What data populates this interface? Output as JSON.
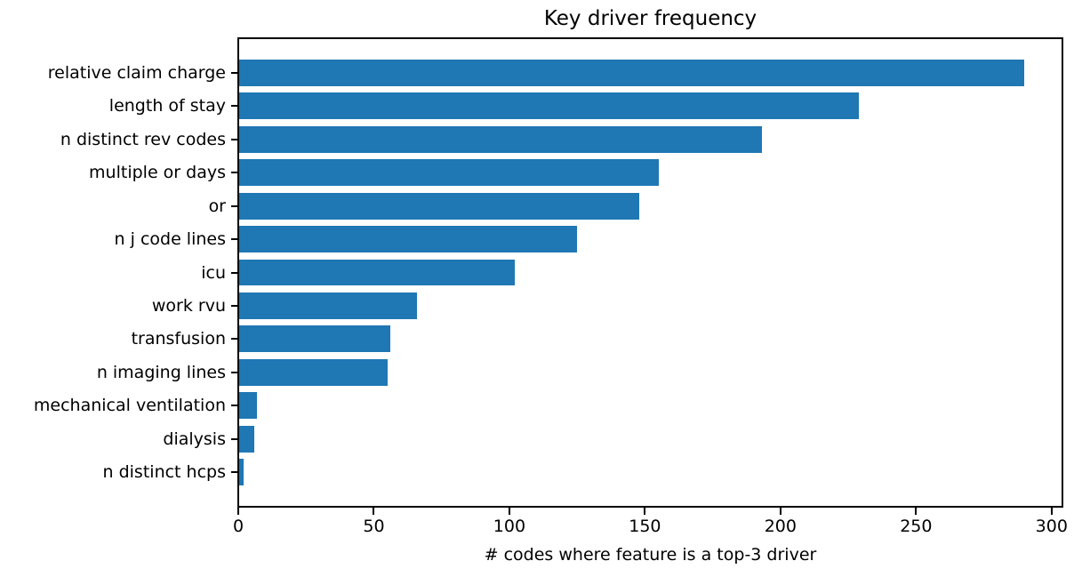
{
  "chart_data": {
    "type": "bar",
    "orientation": "horizontal",
    "title": "Key driver frequency",
    "xlabel": "# codes where feature is a top-3 driver",
    "ylabel": "",
    "categories": [
      "relative claim charge",
      "length of stay",
      "n distinct rev codes",
      "multiple or days",
      "or",
      "n j code lines",
      "icu",
      "work rvu",
      "transfusion",
      "n imaging lines",
      "mechanical ventilation",
      "dialysis",
      "n distinct hcps"
    ],
    "values": [
      290,
      229,
      193,
      155,
      148,
      125,
      102,
      66,
      56,
      55,
      7,
      6,
      2
    ],
    "xticks": [
      0,
      50,
      100,
      150,
      200,
      250,
      300
    ],
    "xlim": [
      0,
      304
    ],
    "bar_color": "#1f77b4",
    "bar_height_fraction": 0.8,
    "grid": false
  },
  "colors": {
    "bar": "#1f77b4",
    "axis": "#000000",
    "text": "#000000",
    "background": "#ffffff"
  }
}
